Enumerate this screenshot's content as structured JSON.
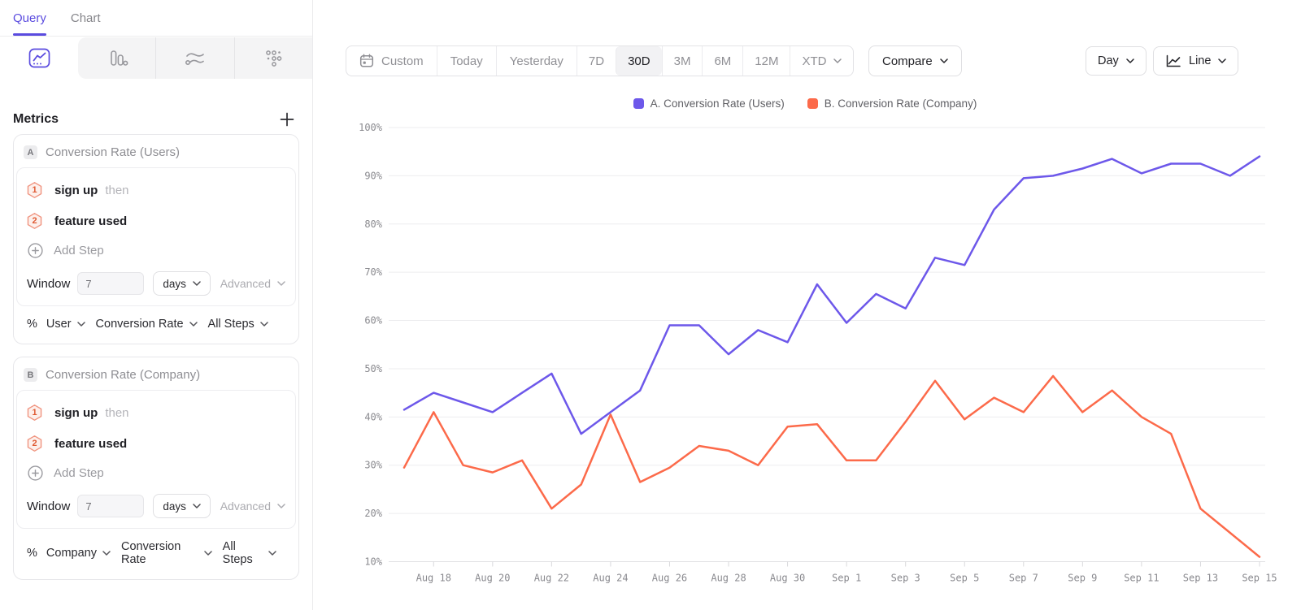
{
  "sidebar": {
    "tabs": [
      {
        "label": "Query"
      },
      {
        "label": "Chart"
      }
    ],
    "chart_type_tabs": [
      "line-chart",
      "bar-chart",
      "flow-chart",
      "dots-grid"
    ],
    "metrics": {
      "title": "Metrics",
      "cards": [
        {
          "badge": "A",
          "title": "Conversion Rate (Users)",
          "steps": [
            {
              "num": "1",
              "label": "sign up",
              "suffix": "then"
            },
            {
              "num": "2",
              "label": "feature used",
              "suffix": ""
            }
          ],
          "add_step_label": "Add Step",
          "window_label": "Window",
          "window_value": "7",
          "window_unit": "days",
          "advanced_label": "Advanced",
          "measure_prefix": "%",
          "measured_as": "User",
          "metric_type": "Conversion Rate",
          "steps_scope": "All Steps"
        },
        {
          "badge": "B",
          "title": "Conversion Rate (Company)",
          "steps": [
            {
              "num": "1",
              "label": "sign up",
              "suffix": "then"
            },
            {
              "num": "2",
              "label": "feature used",
              "suffix": ""
            }
          ],
          "add_step_label": "Add Step",
          "window_label": "Window",
          "window_value": "7",
          "window_unit": "days",
          "advanced_label": "Advanced",
          "measure_prefix": "%",
          "measured_as": "Company",
          "metric_type": "Conversion Rate",
          "steps_scope": "All Steps"
        }
      ]
    }
  },
  "toolbar": {
    "date_ranges": [
      {
        "label": "Custom"
      },
      {
        "label": "Today"
      },
      {
        "label": "Yesterday"
      },
      {
        "label": "7D"
      },
      {
        "label": "30D"
      },
      {
        "label": "3M"
      },
      {
        "label": "6M"
      },
      {
        "label": "12M"
      },
      {
        "label": "XTD"
      }
    ],
    "selected_range": "30D",
    "compare_label": "Compare",
    "interval_label": "Day",
    "chart_style_label": "Line"
  },
  "legend": [
    {
      "label": "A. Conversion Rate (Users)",
      "color": "#6d58ea"
    },
    {
      "label": "B. Conversion Rate (Company)",
      "color": "#fc6a4a"
    }
  ],
  "chart_data": {
    "type": "line",
    "x": [
      "Aug 17",
      "Aug 18",
      "Aug 19",
      "Aug 20",
      "Aug 21",
      "Aug 22",
      "Aug 23",
      "Aug 24",
      "Aug 25",
      "Aug 26",
      "Aug 27",
      "Aug 28",
      "Aug 29",
      "Aug 30",
      "Aug 31",
      "Sep 1",
      "Sep 2",
      "Sep 3",
      "Sep 4",
      "Sep 5",
      "Sep 6",
      "Sep 7",
      "Sep 8",
      "Sep 9",
      "Sep 10",
      "Sep 11",
      "Sep 12",
      "Sep 13",
      "Sep 14",
      "Sep 15"
    ],
    "x_tick_every": 2,
    "series": [
      {
        "name": "A. Conversion Rate (Users)",
        "color": "#6d58ea",
        "values": [
          41.5,
          45,
          43,
          41,
          45,
          49,
          36.5,
          41,
          45.5,
          59,
          59,
          53,
          58,
          55.5,
          67.5,
          59.5,
          65.5,
          62.5,
          73,
          71.5,
          83,
          89.5,
          90,
          91.5,
          93.5,
          90.5,
          92.5,
          92.5,
          90,
          94
        ]
      },
      {
        "name": "B. Conversion Rate (Company)",
        "color": "#fc6a4a",
        "values": [
          29.5,
          41,
          30,
          28.5,
          31,
          21,
          26,
          40.5,
          26.5,
          29.5,
          34,
          33,
          30,
          38,
          38.5,
          31,
          31,
          39,
          47.5,
          39.5,
          44,
          41,
          48.5,
          41,
          45.5,
          40,
          36.5,
          21,
          16,
          11
        ]
      }
    ],
    "ylim": [
      10,
      100
    ],
    "y_ticks": [
      "100%",
      "90%",
      "80%",
      "70%",
      "60%",
      "50%",
      "40%",
      "30%",
      "20%",
      "10%"
    ],
    "grid": "horizontal",
    "legend_position": "top-center",
    "unit": "%"
  }
}
